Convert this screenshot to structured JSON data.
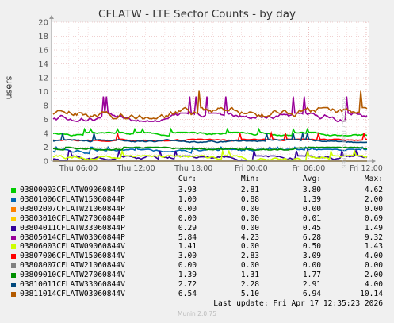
{
  "chart_data": {
    "type": "line",
    "title": "CFLATW - LTE Sector Counts - by day",
    "ylabel": "users",
    "ylim": [
      0,
      20
    ],
    "yticks": [
      0,
      2,
      4,
      6,
      8,
      10,
      12,
      14,
      16,
      18,
      20
    ],
    "xticks": [
      "Thu 06:00",
      "Thu 12:00",
      "Thu 18:00",
      "Fri 00:00",
      "Fri 06:00",
      "Fri 12:00"
    ],
    "grid": true,
    "series": [
      {
        "name": "03800003CFLATW09060844P",
        "color": "#00cc00",
        "cur": "3.93",
        "min": "2.81",
        "avg": "3.80",
        "max": "4.62",
        "base": 3.9,
        "amp": 0.25,
        "spike": 4.6
      },
      {
        "name": "03801006CFLATW15060844P",
        "color": "#0066b3",
        "cur": "1.00",
        "min": "0.88",
        "avg": "1.39",
        "max": "2.00",
        "base": 1.4,
        "amp": 0.3,
        "spike": 2.0
      },
      {
        "name": "03802007CFLATW21060844P",
        "color": "#ff8000",
        "cur": "0.00",
        "min": "0.00",
        "avg": "0.00",
        "max": "0.00",
        "base": 0.0,
        "amp": 0.0,
        "spike": 0.0
      },
      {
        "name": "03803010CFLATW27060844P",
        "color": "#ffcc00",
        "cur": "0.00",
        "min": "0.00",
        "avg": "0.01",
        "max": "0.69",
        "base": 0.0,
        "amp": 0.0,
        "spike": 0.69
      },
      {
        "name": "03804011CFLATW33060844P",
        "color": "#330099",
        "cur": "0.29",
        "min": "0.00",
        "avg": "0.45",
        "max": "1.49",
        "base": 0.4,
        "amp": 0.35,
        "spike": 1.49
      },
      {
        "name": "03805014CFLATW03060844P",
        "color": "#990099",
        "cur": "5.84",
        "min": "4.23",
        "avg": "6.28",
        "max": "9.32",
        "base": 6.3,
        "amp": 0.6,
        "spike": 9.3
      },
      {
        "name": "03806003CFLATW09060844V",
        "color": "#ccff00",
        "cur": "1.41",
        "min": "0.00",
        "avg": "0.50",
        "max": "1.43",
        "base": 0.4,
        "amp": 0.4,
        "spike": 1.43
      },
      {
        "name": "03807006CFLATW15060844V",
        "color": "#ff0000",
        "cur": "3.00",
        "min": "2.83",
        "avg": "3.09",
        "max": "4.00",
        "base": 3.0,
        "amp": 0.15,
        "spike": 4.0
      },
      {
        "name": "03808007CFLATW21060844V",
        "color": "#808080",
        "cur": "0.00",
        "min": "0.00",
        "avg": "0.00",
        "max": "0.00",
        "base": 0.0,
        "amp": 0.0,
        "spike": 0.0
      },
      {
        "name": "03809010CFLATW27060844V",
        "color": "#008f00",
        "cur": "1.39",
        "min": "1.31",
        "avg": "1.77",
        "max": "2.00",
        "base": 1.8,
        "amp": 0.2,
        "spike": 2.0
      },
      {
        "name": "03810011CFLATW33060844V",
        "color": "#00487d",
        "cur": "2.72",
        "min": "2.28",
        "avg": "2.91",
        "max": "4.00",
        "base": 2.9,
        "amp": 0.2,
        "spike": 4.0
      },
      {
        "name": "03811014CFLATW03060844V",
        "color": "#b35a00",
        "cur": "6.54",
        "min": "5.10",
        "avg": "6.94",
        "max": "10.14",
        "base": 6.9,
        "amp": 0.8,
        "spike": 10.1
      }
    ]
  },
  "legend": {
    "cur_label": "Cur:",
    "min_label": "Min:",
    "avg_label": "Avg:",
    "max_label": "Max:"
  },
  "footer": {
    "last_update": "Last update: Fri Apr 17 12:35:23 2026",
    "munin": "Munin 2.0.75"
  },
  "watermark": "RRDTOOL / TOBI OETIKER"
}
